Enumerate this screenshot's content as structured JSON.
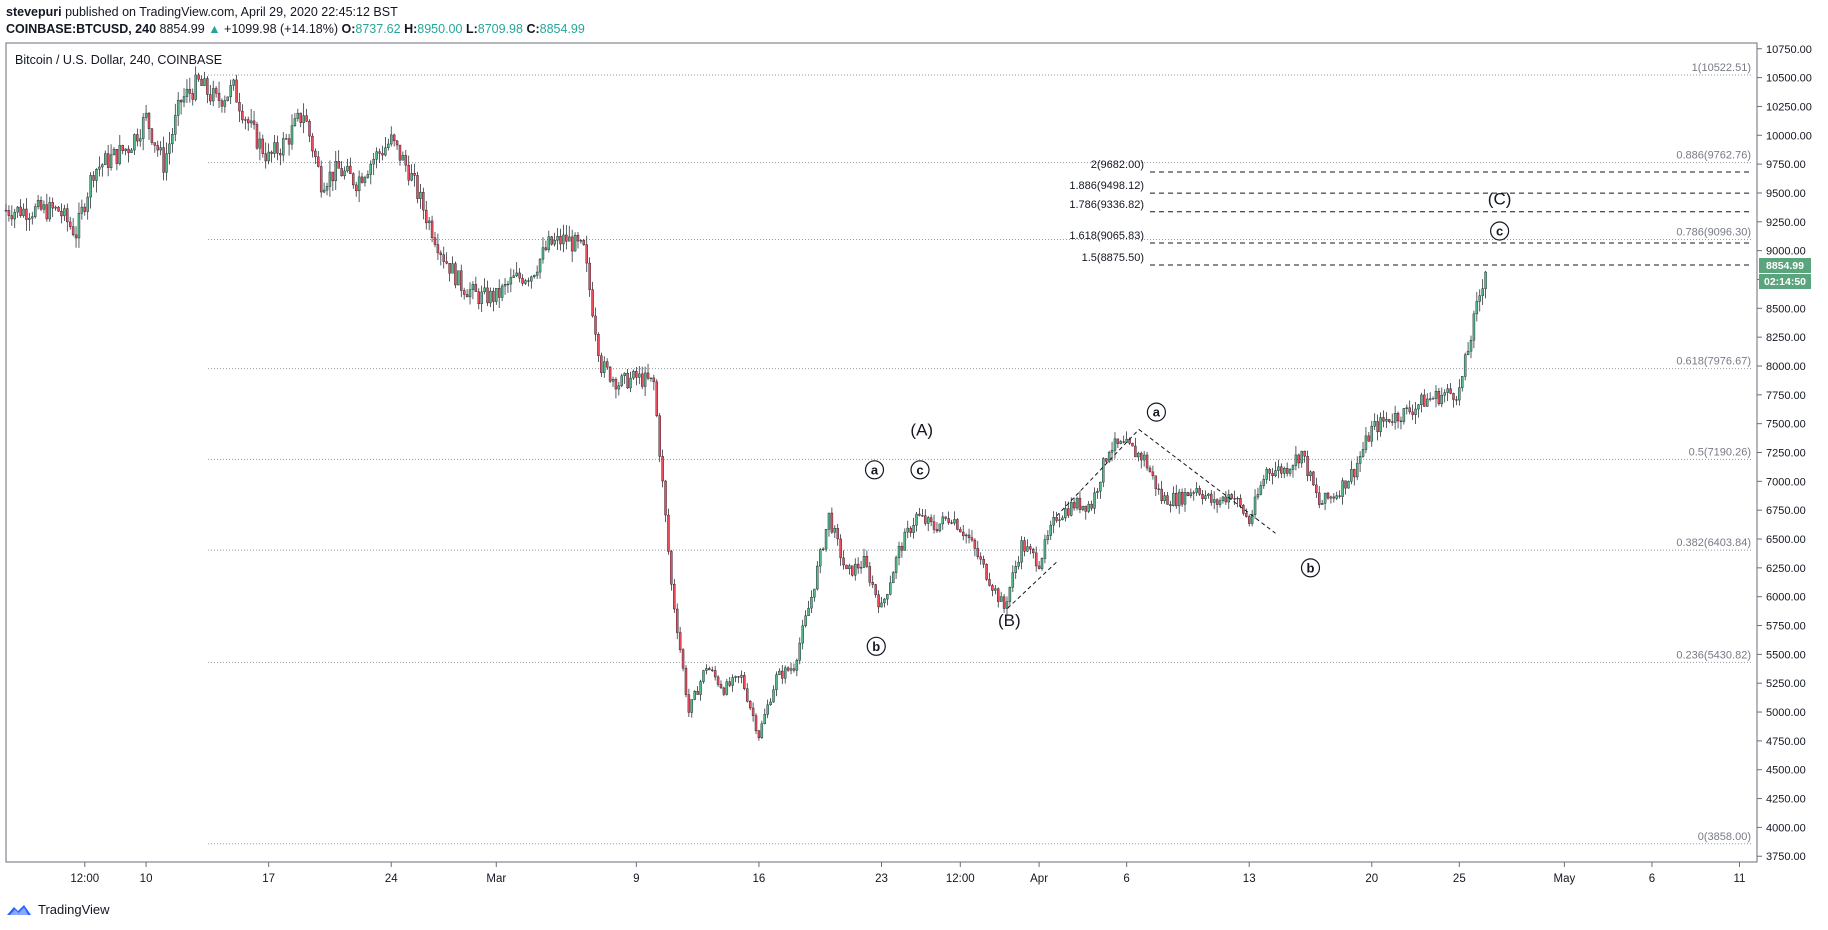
{
  "header": {
    "author": "stevepuri",
    "published": "published on TradingView.com, April 29, 2020 22:45:12 BST",
    "symbol": "COINBASE:BTCUSD, 240",
    "last": "8854.99",
    "arrow": "▲",
    "change": "+1099.98 (+14.18%)",
    "o_label": "O:",
    "o_value": "8737.62",
    "h_label": "H:",
    "h_value": "8950.00",
    "l_label": "L:",
    "l_value": "8709.98",
    "c_label": "C:",
    "c_value": "8854.99"
  },
  "footer": {
    "brand": "TradingView"
  },
  "colors": {
    "up": "#26a69a",
    "down": "#ef5350",
    "candle_up_body": "#53b987",
    "candle_down_body": "#eb4d5c",
    "badge": "#5aa57d",
    "grid_dotted": "#9598a1"
  },
  "chart_data": {
    "type": "candlestick",
    "title": "Bitcoin / U.S. Dollar, 240, COINBASE",
    "ylim": [
      3700,
      10800
    ],
    "y_ticks": [
      3750,
      4000,
      4250,
      4500,
      4750,
      5000,
      5250,
      5500,
      5750,
      6000,
      6250,
      6500,
      6750,
      7000,
      7250,
      7500,
      7750,
      8000,
      8250,
      8500,
      8750,
      9000,
      9250,
      9500,
      9750,
      10000,
      10250,
      10500,
      10750
    ],
    "y_tick_labels": [
      "3750.00",
      "4000.00",
      "4250.00",
      "4500.00",
      "4750.00",
      "5000.00",
      "5250.00",
      "5500.00",
      "5750.00",
      "6000.00",
      "6250.00",
      "6500.00",
      "6750.00",
      "7000.00",
      "7250.00",
      "7500.00",
      "7750.00",
      "8000.00",
      "8250.00",
      "8500.00",
      "8750.00",
      "9000.00",
      "9250.00",
      "9500.00",
      "9750.00",
      "10000.00",
      "10250.00",
      "10500.00",
      "10750.00"
    ],
    "x_ticks": [
      {
        "label": "12:00",
        "day": -3.5
      },
      {
        "label": "10",
        "day": 0
      },
      {
        "label": "17",
        "day": 7
      },
      {
        "label": "24",
        "day": 14
      },
      {
        "label": "Mar",
        "day": 20
      },
      {
        "label": "9",
        "day": 28
      },
      {
        "label": "16",
        "day": 35
      },
      {
        "label": "23",
        "day": 42
      },
      {
        "label": "12:00",
        "day": 46.5
      },
      {
        "label": "Apr",
        "day": 51
      },
      {
        "label": "6",
        "day": 56
      },
      {
        "label": "13",
        "day": 63
      },
      {
        "label": "20",
        "day": 70
      },
      {
        "label": "25",
        "day": 75
      },
      {
        "label": "May",
        "day": 81
      },
      {
        "label": "6",
        "day": 86
      },
      {
        "label": "11",
        "day": 91
      }
    ],
    "x_range_days": [
      -8,
      92
    ],
    "last_price": "8854.99",
    "countdown": "02:14:50",
    "anchors": [
      {
        "day": -8,
        "price": 9350
      },
      {
        "day": -5,
        "price": 9350
      },
      {
        "day": -4,
        "price": 9150
      },
      {
        "day": -3,
        "price": 9700
      },
      {
        "day": -1,
        "price": 9900
      },
      {
        "day": 0,
        "price": 10150
      },
      {
        "day": 1,
        "price": 9750
      },
      {
        "day": 2,
        "price": 10300
      },
      {
        "day": 3,
        "price": 10450
      },
      {
        "day": 4,
        "price": 10300
      },
      {
        "day": 5,
        "price": 10400
      },
      {
        "day": 6,
        "price": 10050
      },
      {
        "day": 7,
        "price": 9800
      },
      {
        "day": 8,
        "price": 9950
      },
      {
        "day": 9,
        "price": 10200
      },
      {
        "day": 10,
        "price": 9600
      },
      {
        "day": 11,
        "price": 9700
      },
      {
        "day": 12,
        "price": 9600
      },
      {
        "day": 13,
        "price": 9800
      },
      {
        "day": 14,
        "price": 9950
      },
      {
        "day": 15,
        "price": 9700
      },
      {
        "day": 16,
        "price": 9300
      },
      {
        "day": 17,
        "price": 8950
      },
      {
        "day": 18,
        "price": 8700
      },
      {
        "day": 19,
        "price": 8600
      },
      {
        "day": 20,
        "price": 8600
      },
      {
        "day": 21,
        "price": 8750
      },
      {
        "day": 22,
        "price": 8800
      },
      {
        "day": 23,
        "price": 9050
      },
      {
        "day": 24,
        "price": 9100
      },
      {
        "day": 25,
        "price": 9000
      },
      {
        "day": 26,
        "price": 8000
      },
      {
        "day": 27,
        "price": 7850
      },
      {
        "day": 28,
        "price": 7900
      },
      {
        "day": 29,
        "price": 7850
      },
      {
        "day": 30,
        "price": 6100
      },
      {
        "day": 31,
        "price": 5000
      },
      {
        "day": 32,
        "price": 5400
      },
      {
        "day": 33,
        "price": 5200
      },
      {
        "day": 34,
        "price": 5300
      },
      {
        "day": 35,
        "price": 4800
      },
      {
        "day": 36,
        "price": 5300
      },
      {
        "day": 37,
        "price": 5400
      },
      {
        "day": 38,
        "price": 6000
      },
      {
        "day": 39,
        "price": 6700
      },
      {
        "day": 40,
        "price": 6200
      },
      {
        "day": 41,
        "price": 6300
      },
      {
        "day": 42,
        "price": 5900
      },
      {
        "day": 43,
        "price": 6400
      },
      {
        "day": 44,
        "price": 6700
      },
      {
        "day": 45,
        "price": 6600
      },
      {
        "day": 46,
        "price": 6700
      },
      {
        "day": 47,
        "price": 6500
      },
      {
        "day": 48,
        "price": 6200
      },
      {
        "day": 49,
        "price": 5900
      },
      {
        "day": 50,
        "price": 6450
      },
      {
        "day": 51,
        "price": 6300
      },
      {
        "day": 52,
        "price": 6700
      },
      {
        "day": 53,
        "price": 6800
      },
      {
        "day": 54,
        "price": 6800
      },
      {
        "day": 55,
        "price": 7300
      },
      {
        "day": 56,
        "price": 7300
      },
      {
        "day": 57,
        "price": 7200
      },
      {
        "day": 58,
        "price": 6850
      },
      {
        "day": 59,
        "price": 6850
      },
      {
        "day": 60,
        "price": 6950
      },
      {
        "day": 61,
        "price": 6800
      },
      {
        "day": 62,
        "price": 6900
      },
      {
        "day": 63,
        "price": 6650
      },
      {
        "day": 64,
        "price": 7100
      },
      {
        "day": 65,
        "price": 7100
      },
      {
        "day": 66,
        "price": 7250
      },
      {
        "day": 67,
        "price": 6800
      },
      {
        "day": 68,
        "price": 6900
      },
      {
        "day": 69,
        "price": 7100
      },
      {
        "day": 70,
        "price": 7450
      },
      {
        "day": 71,
        "price": 7550
      },
      {
        "day": 72,
        "price": 7600
      },
      {
        "day": 73,
        "price": 7700
      },
      {
        "day": 74,
        "price": 7750
      },
      {
        "day": 75,
        "price": 7780
      },
      {
        "day": 76,
        "price": 8500
      },
      {
        "day": 76.5,
        "price": 8850
      }
    ],
    "fib_retracement": [
      {
        "label": "1(10522.51)",
        "price": 10522.51
      },
      {
        "label": "0.886(9762.76)",
        "price": 9762.76
      },
      {
        "label": "0.786(9096.30)",
        "price": 9096.3
      },
      {
        "label": "0.618(7976.67)",
        "price": 7976.67
      },
      {
        "label": "0.5(7190.26)",
        "price": 7190.26
      },
      {
        "label": "0.382(6403.84)",
        "price": 6403.84
      },
      {
        "label": "0.236(5430.82)",
        "price": 5430.82
      },
      {
        "label": "0(3858.00)",
        "price": 3858.0
      }
    ],
    "fib_extension": [
      {
        "label": "2(9682.00)",
        "price": 9682.0
      },
      {
        "label": "1.886(9498.12)",
        "price": 9498.12
      },
      {
        "label": "1.786(9336.82)",
        "price": 9336.82
      },
      {
        "label": "1.618(9065.83)",
        "price": 9065.83
      },
      {
        "label": "1.5(8875.50)",
        "price": 8875.5
      }
    ],
    "wave_labels": [
      {
        "text": "a",
        "circled": true,
        "day": 41.6,
        "price": 7100
      },
      {
        "text": "b",
        "circled": true,
        "day": 41.7,
        "price": 5570
      },
      {
        "text": "c",
        "circled": true,
        "day": 44.2,
        "price": 7100
      },
      {
        "text": "(A)",
        "circled": false,
        "day": 44.3,
        "price": 7450
      },
      {
        "text": "(B)",
        "circled": false,
        "day": 49.3,
        "price": 5800
      },
      {
        "text": "a",
        "circled": true,
        "day": 57.7,
        "price": 7600
      },
      {
        "text": "b",
        "circled": true,
        "day": 66.5,
        "price": 6250
      },
      {
        "text": "(C)",
        "circled": false,
        "day": 77.3,
        "price": 9450
      },
      {
        "text": "c",
        "circled": true,
        "day": 77.3,
        "price": 9170
      }
    ],
    "trend_lines": [
      [
        {
          "day": 49.2,
          "price": 5900
        },
        {
          "day": 52.0,
          "price": 6300
        }
      ],
      [
        {
          "day": 52.0,
          "price": 6700
        },
        {
          "day": 56.7,
          "price": 7450
        }
      ],
      [
        {
          "day": 56.7,
          "price": 7450
        },
        {
          "day": 64.5,
          "price": 6550
        }
      ]
    ]
  }
}
